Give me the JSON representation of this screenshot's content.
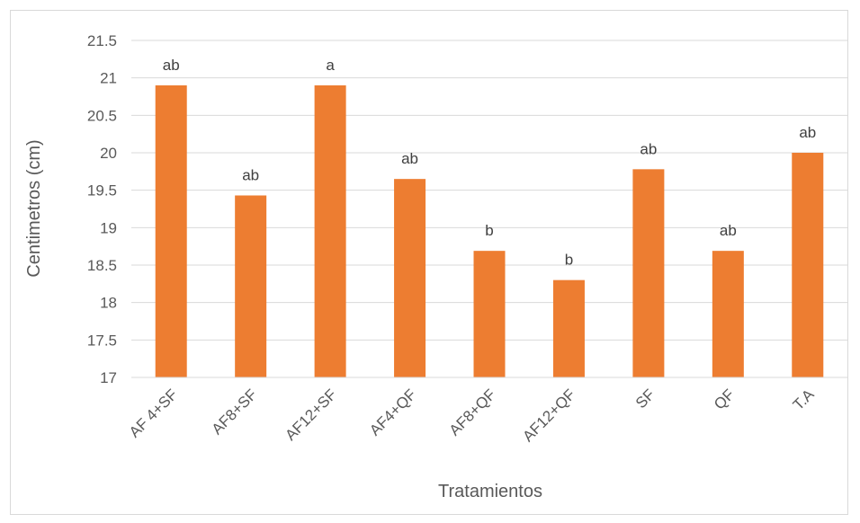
{
  "chart_data": {
    "type": "bar",
    "categories": [
      "AF 4+SF",
      "AF8+SF",
      "AF12+SF",
      "AF4+QF",
      "AF8+QF",
      "AF12+QF",
      "SF",
      "QF",
      "T.A"
    ],
    "values": [
      20.9,
      19.43,
      20.9,
      19.65,
      18.69,
      18.3,
      19.78,
      18.69,
      20.0
    ],
    "labels": [
      "ab",
      "ab",
      "a",
      "ab",
      "b",
      "b",
      "ab",
      "ab",
      "ab"
    ],
    "title": "",
    "xlabel": "Tratamientos",
    "ylabel": "Centimetros (cm)",
    "ylim": [
      17,
      21.5
    ],
    "yticks": [
      "17",
      "17.5",
      "18",
      "18.5",
      "19",
      "19.5",
      "20",
      "20.5",
      "21",
      "21.5"
    ],
    "grid": true,
    "legend": "none",
    "bar_color": "#ED7D31",
    "grid_color": "#d9d9d9"
  }
}
